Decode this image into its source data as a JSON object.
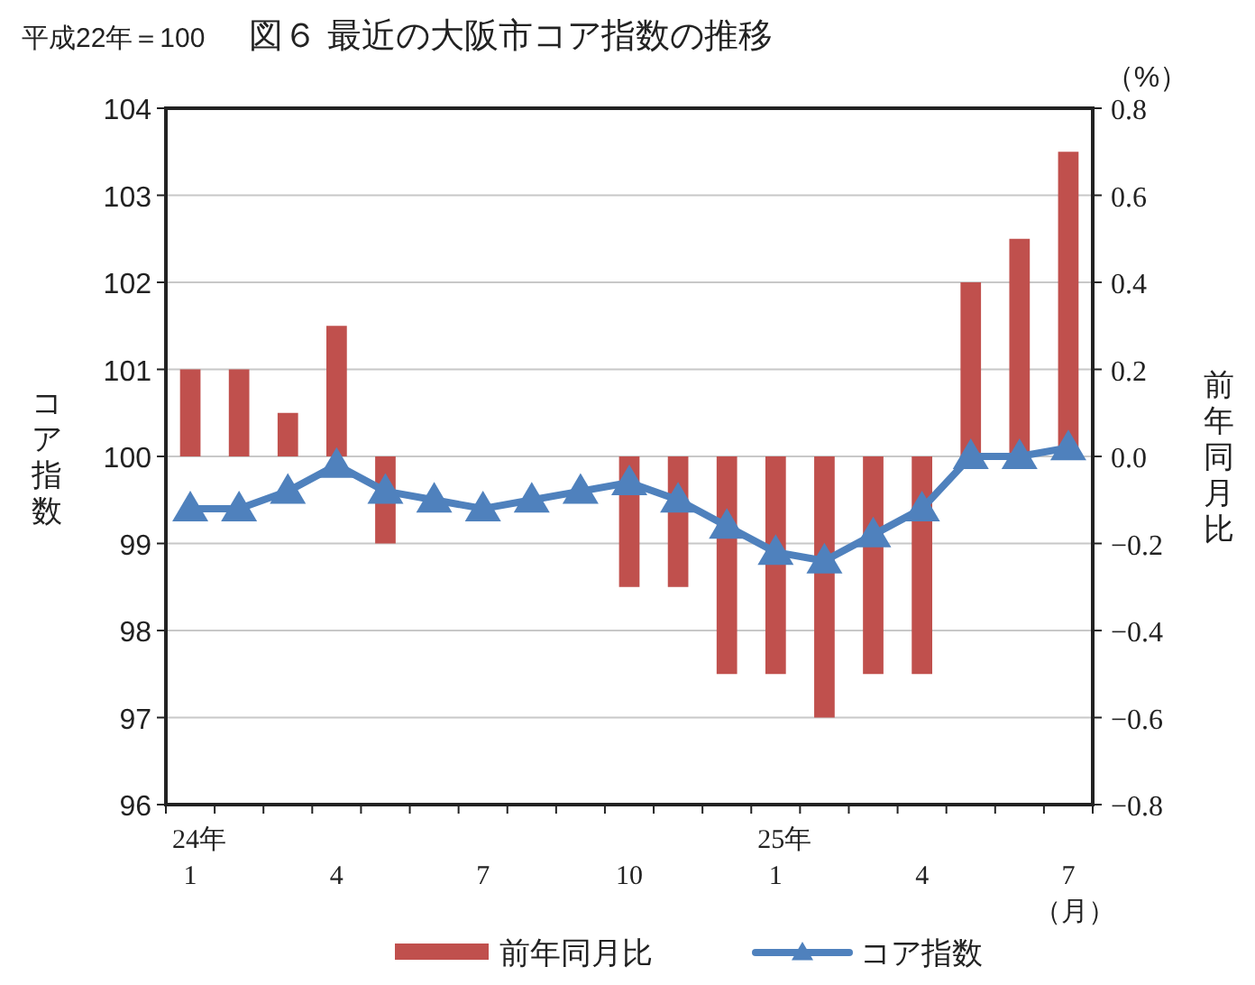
{
  "chart_data": {
    "type": "bar",
    "title": "図６ 最近の大阪市コア指数の推移",
    "subtitle": "平成22年＝100",
    "ylabel": "コア指数",
    "y2label": "前年同月比",
    "xlabel": "（月）",
    "annotations": [
      "（%）"
    ],
    "categories": [
      "24年\n1",
      null,
      null,
      "4",
      null,
      null,
      "7",
      null,
      null,
      "10",
      null,
      null,
      "25年\n1",
      null,
      null,
      "4",
      null,
      null,
      "7"
    ],
    "series": [
      {
        "name": "前年同月比",
        "axis": "y2",
        "color": "#c0504d",
        "values": [
          0.2,
          0.2,
          0.1,
          0.3,
          -0.2,
          0,
          0,
          0,
          null,
          -0.3,
          -0.3,
          -0.5,
          -0.5,
          -0.6,
          -0.5,
          -0.5,
          0.4,
          0.5,
          0.7
        ]
      },
      {
        "name": "コア指数",
        "type": "line",
        "color": "#4f81bd",
        "marker": "triangle",
        "values": [
          99.4,
          99.4,
          99.6,
          99.9,
          99.6,
          99.5,
          99.4,
          99.5,
          99.6,
          99.7,
          99.5,
          99.2,
          98.9,
          98.8,
          99.1,
          99.4,
          100.0,
          100.0,
          100.1
        ]
      }
    ],
    "ylim": [
      96,
      104
    ],
    "yticks": [
      96,
      97,
      98,
      99,
      100,
      101,
      102,
      103,
      104
    ],
    "y2lim": [
      -0.8,
      0.8
    ],
    "y2ticks": [
      {
        "value": -0.8,
        "label": "−0.8"
      },
      {
        "value": -0.6,
        "label": "−0.6"
      },
      {
        "value": -0.4,
        "label": "−0.4"
      },
      {
        "value": -0.2,
        "label": "−0.2"
      },
      {
        "value": 0,
        "label": "0.0"
      },
      {
        "value": 0.2,
        "label": "0.2"
      },
      {
        "value": 0.4,
        "label": "0.4"
      },
      {
        "value": 0.6,
        "label": "0.6"
      },
      {
        "value": 0.8,
        "label": "0.8"
      }
    ],
    "grid": "y",
    "legend": "bottom"
  }
}
